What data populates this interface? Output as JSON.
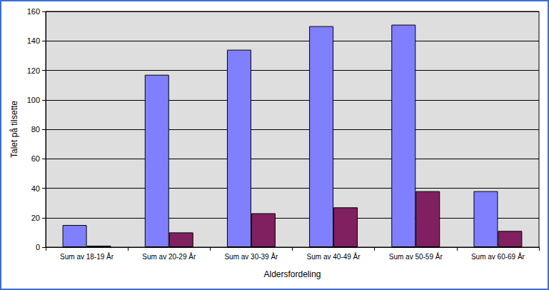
{
  "chart_data": {
    "type": "bar",
    "x_label": "Aldersfordeling",
    "y_label": "Talet på tilsette",
    "categories": [
      "Sum av 18-19 År",
      "Sum av 20-29 År",
      "Sum av 30-39 År",
      "Sum av 40-49 År",
      "Sum av 50-59 År",
      "Sum av 60-69 År"
    ],
    "series": [
      {
        "color": "#8080ff",
        "values": [
          15,
          117,
          134,
          150,
          151,
          38
        ]
      },
      {
        "color": "#802060",
        "values": [
          1,
          10,
          23,
          27,
          38,
          11
        ]
      }
    ],
    "ylim": [
      0,
      160
    ],
    "yticks": [
      0,
      20,
      40,
      60,
      80,
      100,
      120,
      140,
      160
    ],
    "grid": true
  }
}
